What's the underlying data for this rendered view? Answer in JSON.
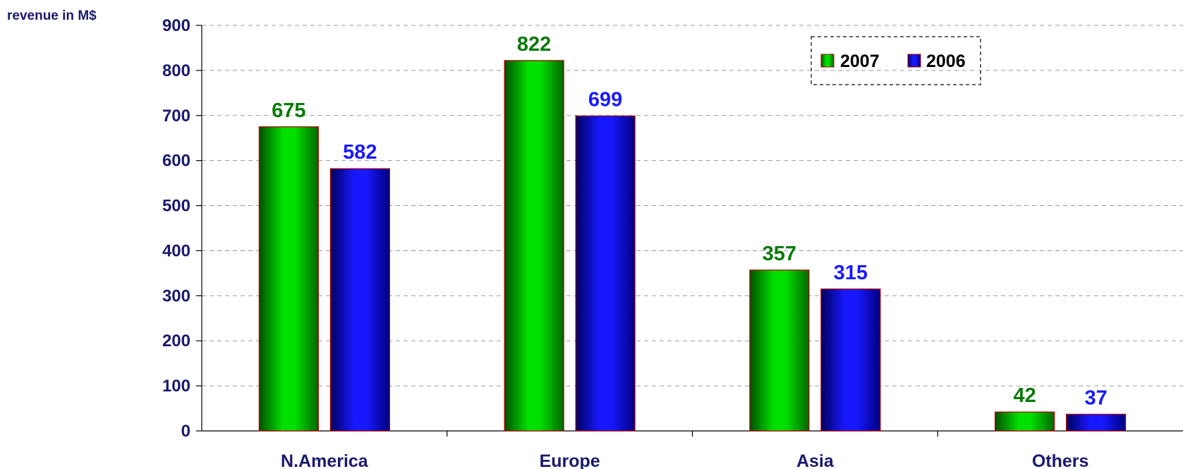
{
  "chart_data": {
    "type": "bar",
    "title": "",
    "ylabel": "revenue in M$",
    "xlabel": "",
    "categories": [
      "N.America",
      "Europe",
      "Asia",
      "Others"
    ],
    "series": [
      {
        "name": "2007",
        "values": [
          675,
          822,
          357,
          42
        ]
      },
      {
        "name": "2006",
        "values": [
          582,
          699,
          315,
          37
        ]
      }
    ],
    "ylim": [
      0,
      900
    ],
    "yticks": [
      0,
      100,
      200,
      300,
      400,
      500,
      600,
      700,
      800,
      900
    ],
    "grid": true,
    "legend_position": "top-right"
  },
  "colors": {
    "series_2007_fill": "#00e000",
    "series_2007_dark": "#005a00",
    "series_2007_label": "#0a7a0a",
    "series_2006_fill": "#1414ff",
    "series_2006_dark": "#00006a",
    "series_2006_label": "#1a1aff",
    "bar_outline": "#b00000",
    "axis_text": "#1a1a6e",
    "grid": "#999999"
  }
}
